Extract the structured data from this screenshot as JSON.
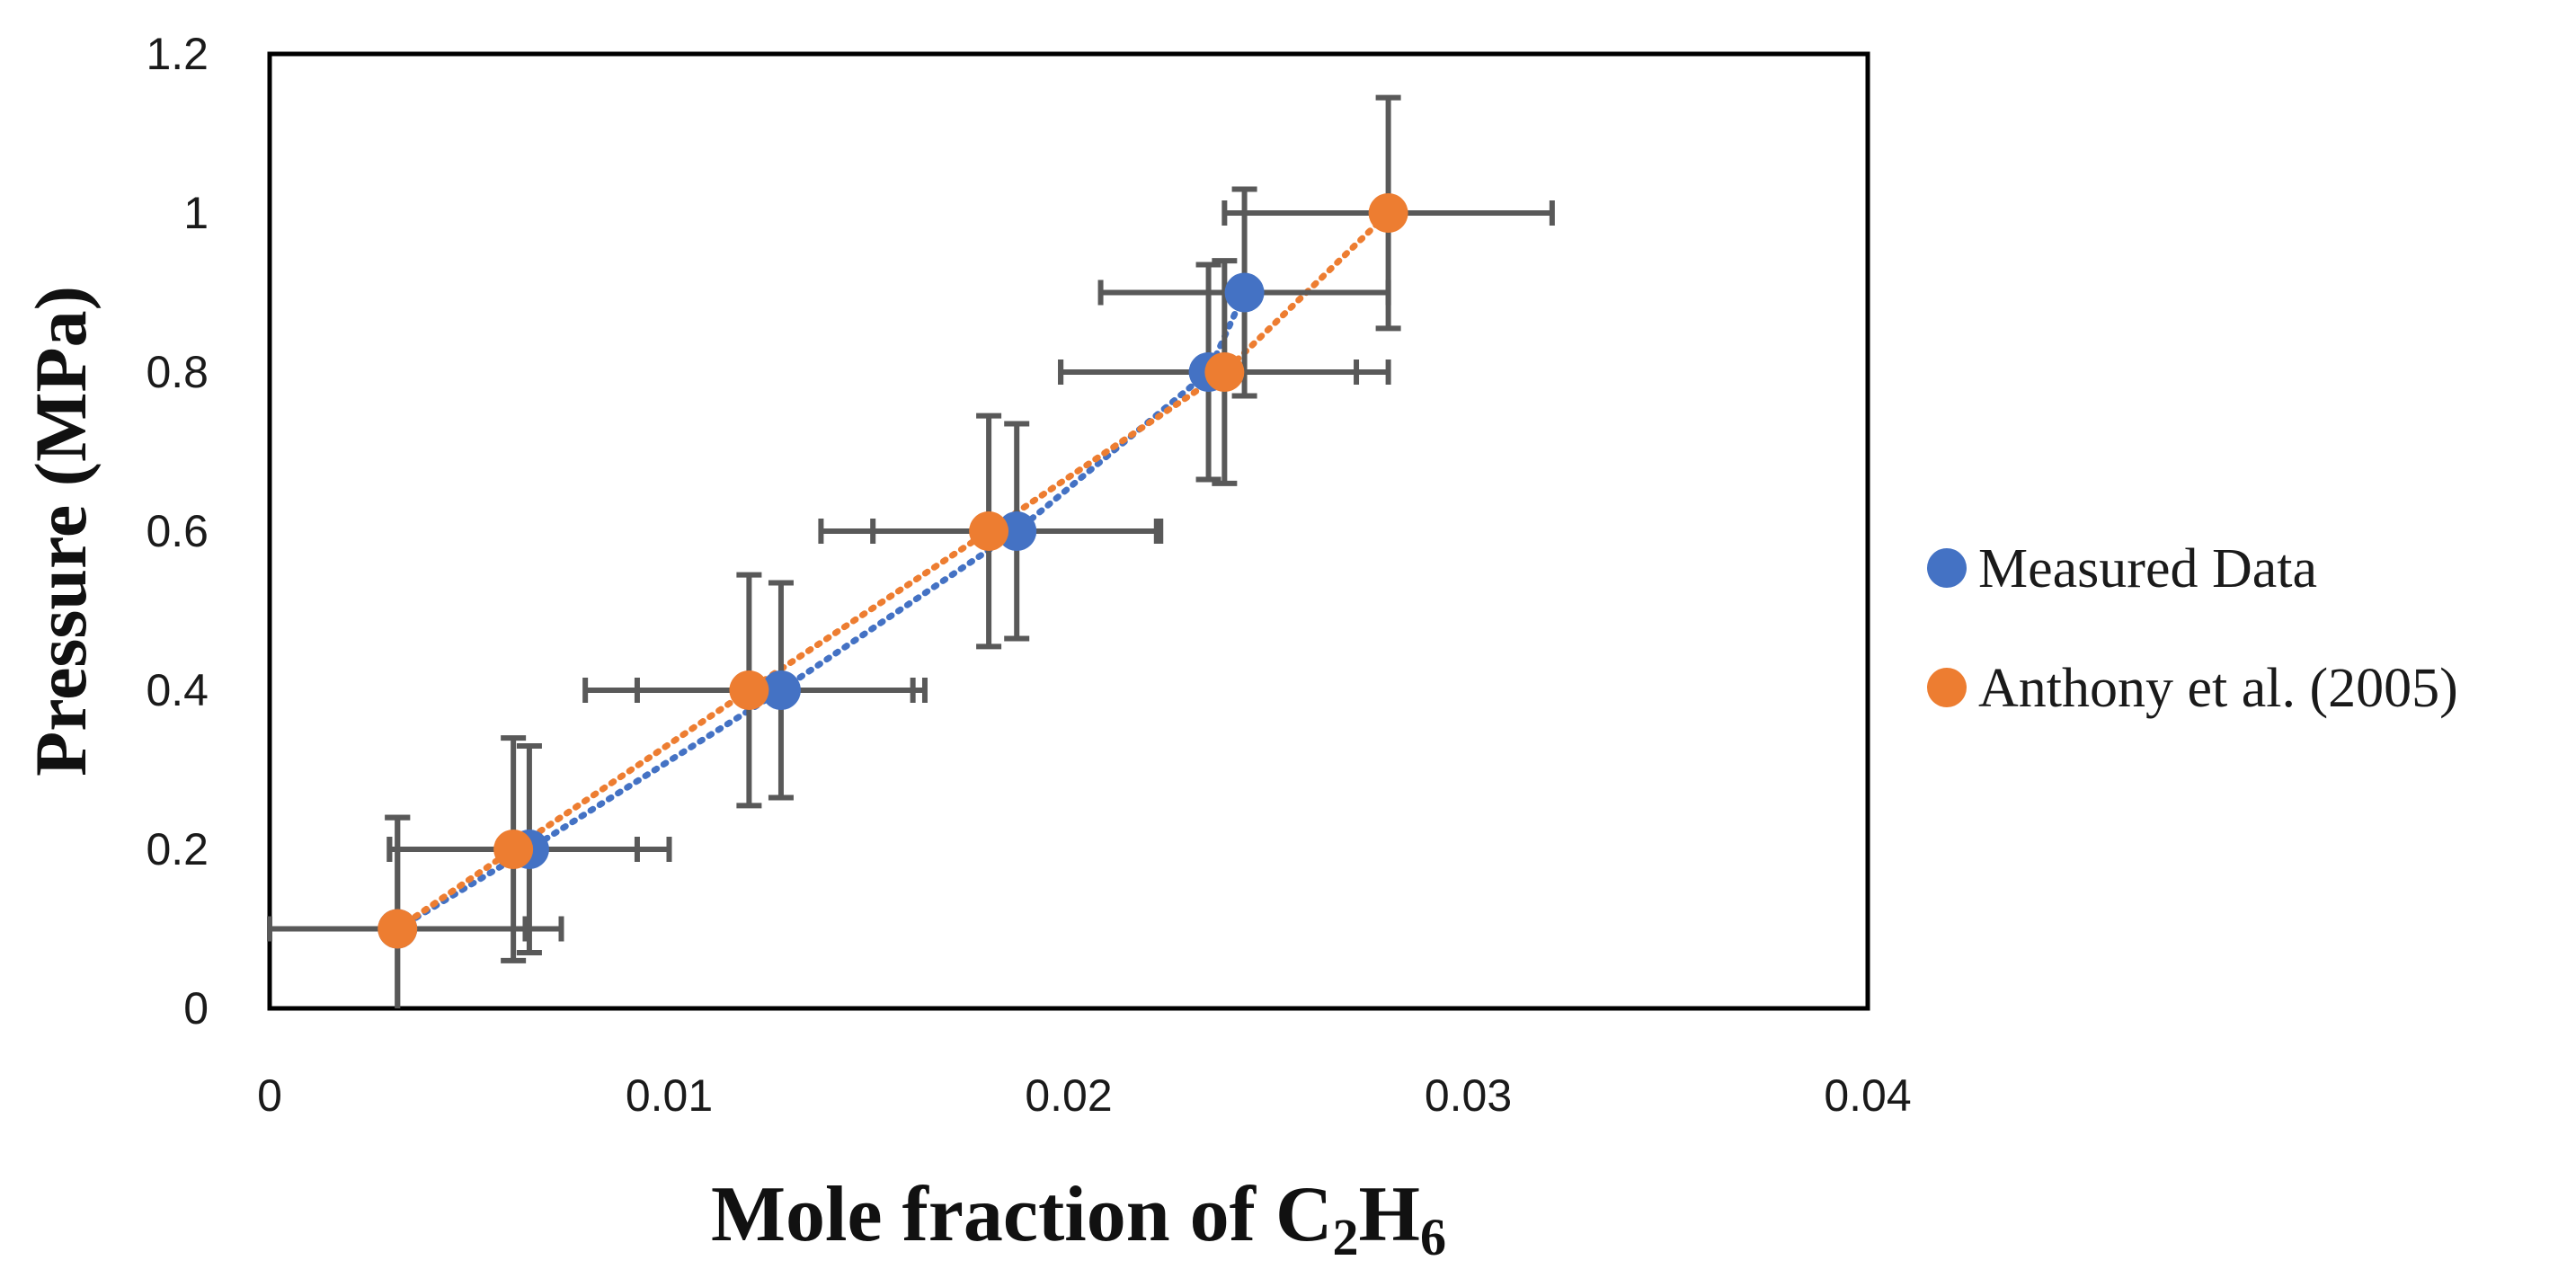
{
  "chart_data": {
    "type": "scatter",
    "title": "",
    "xlabel_main": "Mole fraction of C",
    "xlabel_sub1": "2",
    "xlabel_mid": "H",
    "xlabel_sub2": "6",
    "ylabel": "Pressure (MPa)",
    "xlim": [
      0,
      0.04
    ],
    "ylim": [
      0,
      1.2
    ],
    "x_ticks": [
      "0",
      "0.01",
      "0.02",
      "0.03",
      "0.04"
    ],
    "y_ticks": [
      "0",
      "0.2",
      "0.4",
      "0.6",
      "0.8",
      "1",
      "1.2"
    ],
    "grid": false,
    "legend_position": "right",
    "series": [
      {
        "name": "Measured Data",
        "color": "#4472C4",
        "trendline": "dotted",
        "points": [
          {
            "x": 0.0032,
            "y": 0.1,
            "x_err": 0.0041,
            "y_err": 0.14
          },
          {
            "x": 0.0065,
            "y": 0.2,
            "x_err": 0.0035,
            "y_err": 0.13
          },
          {
            "x": 0.0128,
            "y": 0.4,
            "x_err": 0.0036,
            "y_err": 0.135
          },
          {
            "x": 0.0187,
            "y": 0.6,
            "x_err": 0.0036,
            "y_err": 0.135
          },
          {
            "x": 0.0235,
            "y": 0.8,
            "x_err": 0.0037,
            "y_err": 0.135
          },
          {
            "x": 0.0244,
            "y": 0.9,
            "x_err": 0.0036,
            "y_err": 0.13
          }
        ]
      },
      {
        "name": "Anthony et al. (2005)",
        "color": "#ED7D31",
        "trendline": "dotted",
        "points": [
          {
            "x": 0.0032,
            "y": 0.1,
            "x_err": 0.0032,
            "y_err": 0.14
          },
          {
            "x": 0.0061,
            "y": 0.2,
            "x_err": 0.0031,
            "y_err": 0.14
          },
          {
            "x": 0.012,
            "y": 0.4,
            "x_err": 0.0041,
            "y_err": 0.145
          },
          {
            "x": 0.018,
            "y": 0.6,
            "x_err": 0.0042,
            "y_err": 0.145
          },
          {
            "x": 0.0239,
            "y": 0.8,
            "x_err": 0.0041,
            "y_err": 0.14
          },
          {
            "x": 0.028,
            "y": 1.0,
            "x_err": 0.0041,
            "y_err": 0.145
          }
        ]
      }
    ]
  }
}
